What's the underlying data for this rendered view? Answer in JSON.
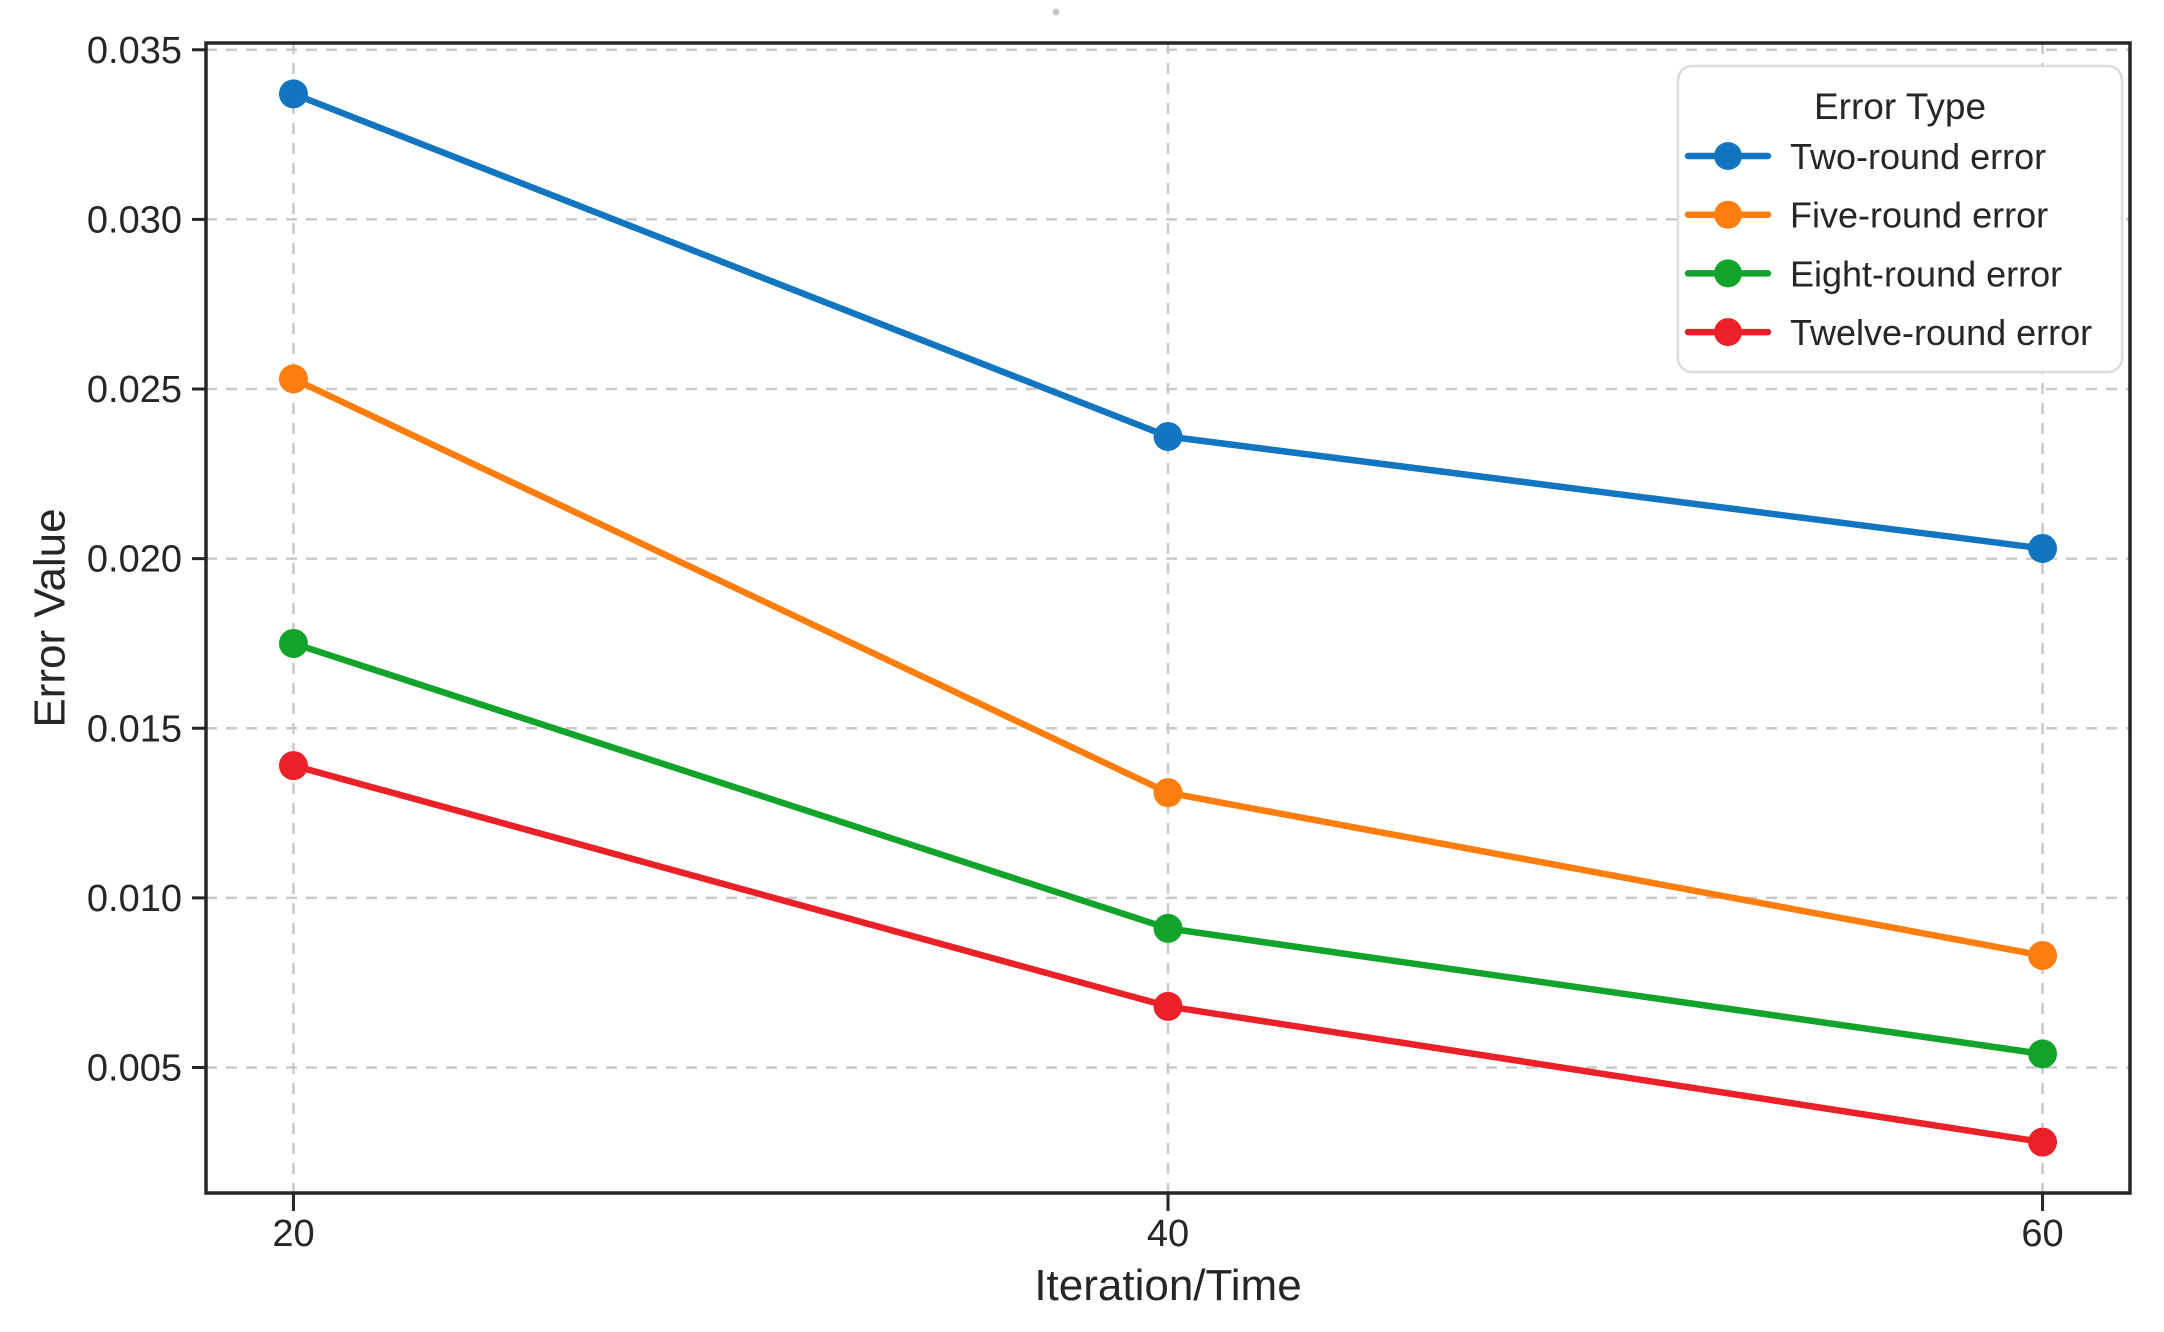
{
  "chart_data": {
    "type": "line",
    "title": "",
    "xlabel": "Iteration/Time",
    "ylabel": "Error Value",
    "x": [
      20,
      40,
      60
    ],
    "x_tick_labels": [
      "20",
      "40",
      "60"
    ],
    "y_ticks": [
      0.005,
      0.01,
      0.015,
      0.02,
      0.025,
      0.03,
      0.035
    ],
    "y_tick_labels": [
      "0.005",
      "0.010",
      "0.015",
      "0.020",
      "0.025",
      "0.030",
      "0.035"
    ],
    "xlim": [
      18,
      62
    ],
    "ylim": [
      0.0013,
      0.0352
    ],
    "grid": true,
    "grid_style": "dashed",
    "marker": "circle",
    "legend": {
      "title": "Error Type",
      "position": "upper right",
      "entries": [
        "Two-round error",
        "Five-round error",
        "Eight-round error",
        "Twelve-round error"
      ]
    },
    "series": [
      {
        "name": "Two-round error",
        "color": "#1176bf",
        "values": [
          0.0337,
          0.0236,
          0.0203
        ]
      },
      {
        "name": "Five-round error",
        "color": "#fd7e0e",
        "values": [
          0.0253,
          0.0131,
          0.0083
        ]
      },
      {
        "name": "Eight-round error",
        "color": "#12a32b",
        "values": [
          0.0175,
          0.0091,
          0.0054
        ]
      },
      {
        "name": "Twelve-round error",
        "color": "#ea2128",
        "values": [
          0.0139,
          0.0068,
          0.0028
        ]
      }
    ]
  },
  "style": {
    "axis_color": "#262626",
    "grid_color": "#c9c9c9",
    "text_color": "#262626",
    "legend_border_color": "#dcdcdc",
    "background": "#ffffff"
  }
}
